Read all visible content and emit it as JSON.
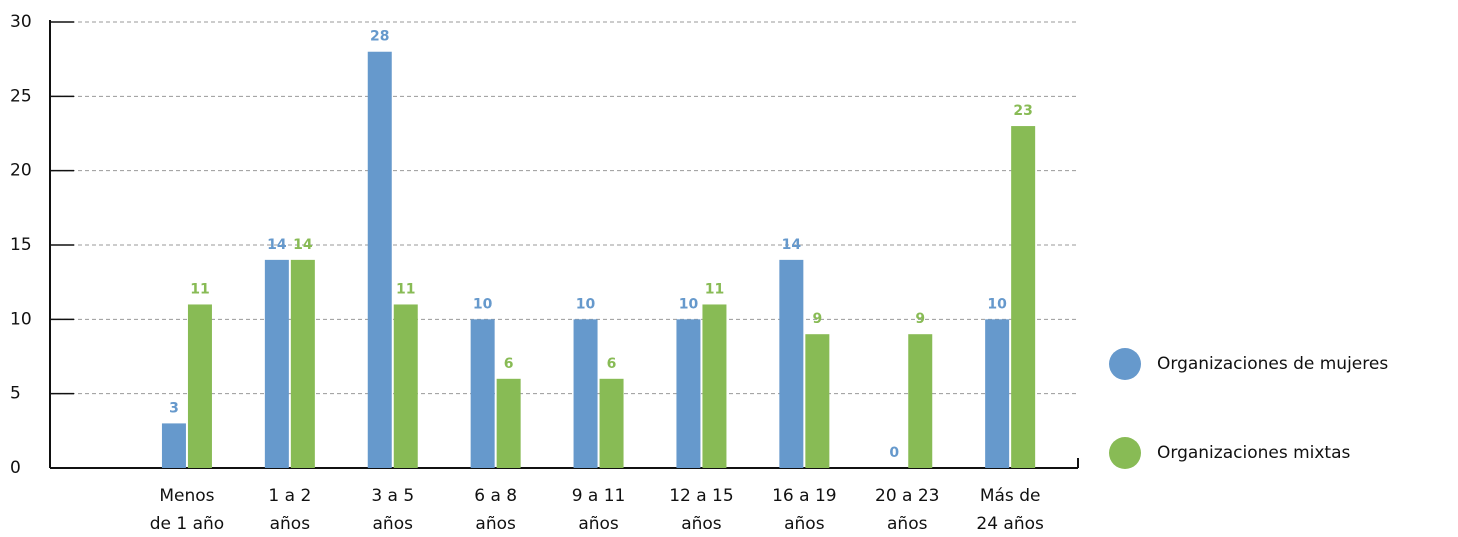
{
  "chart_data": {
    "type": "bar",
    "categories": [
      "Menos\nde 1 año",
      "1 a 2\naños",
      "3 a 5\naños",
      "6 a 8\naños",
      "9 a 11\naños",
      "12 a 15\naños",
      "16 a 19\naños",
      "20 a 23\naños",
      "Más de\n24 años"
    ],
    "series": [
      {
        "name": "Organizaciones de mujeres",
        "color": "#6699cc",
        "values": [
          3,
          14,
          28,
          10,
          10,
          10,
          14,
          0,
          10
        ]
      },
      {
        "name": "Organizaciones mixtas",
        "color": "#88bb55",
        "values": [
          11,
          14,
          11,
          6,
          6,
          11,
          9,
          9,
          23
        ]
      }
    ],
    "ylim": [
      0,
      30
    ],
    "yticks": [
      0,
      5,
      10,
      15,
      20,
      25,
      30
    ],
    "grid": true,
    "legend": "right"
  }
}
